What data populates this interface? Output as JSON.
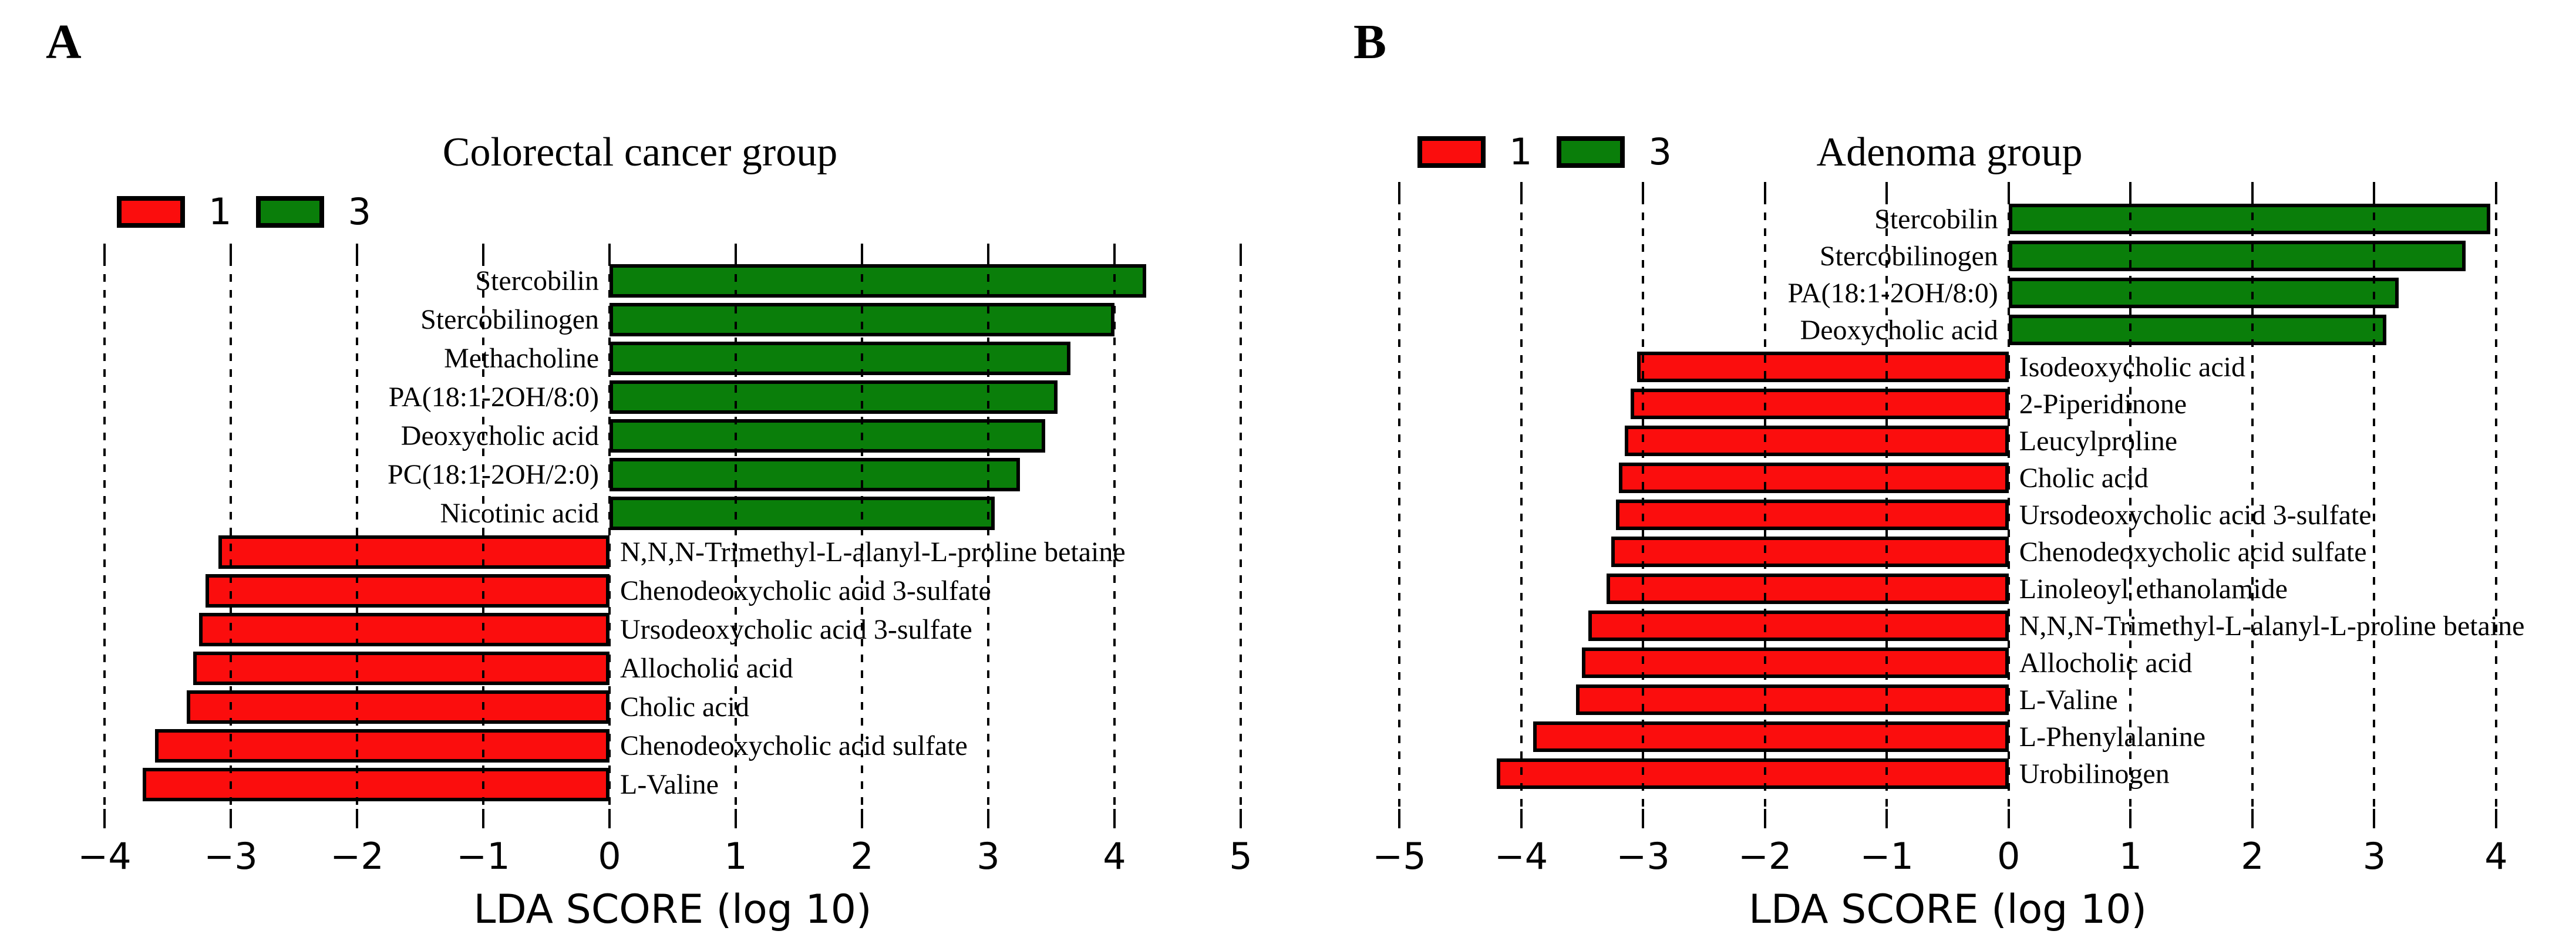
{
  "colors": {
    "series_1_red": "#fb0d0d",
    "series_3_green": "#0a7e0a",
    "bar_border": "#000000",
    "background": "#ffffff",
    "text": "#000000"
  },
  "chart_data": [
    {
      "type": "bar",
      "orientation": "horizontal",
      "panel_letter": "A",
      "title": "Colorectal cancer group",
      "xlabel": "LDA SCORE (log 10)",
      "xlim": [
        -4,
        5
      ],
      "xticks": [
        -4,
        -3,
        -2,
        -1,
        0,
        1,
        2,
        3,
        4,
        5
      ],
      "grid": "dashed-vertical-gridlines",
      "legend_position": "top-left",
      "legend": [
        {
          "label": "1",
          "color": "#fb0d0d"
        },
        {
          "label": "3",
          "color": "#0a7e0a"
        }
      ],
      "bars": [
        {
          "label": "Stercobilin",
          "value": 4.25,
          "series": "3"
        },
        {
          "label": "Stercobilinogen",
          "value": 4.0,
          "series": "3"
        },
        {
          "label": "Methacholine",
          "value": 3.65,
          "series": "3"
        },
        {
          "label": "PA(18:1-2OH/8:0)",
          "value": 3.55,
          "series": "3"
        },
        {
          "label": "Deoxycholic acid",
          "value": 3.45,
          "series": "3"
        },
        {
          "label": "PC(18:1-2OH/2:0)",
          "value": 3.25,
          "series": "3"
        },
        {
          "label": "Nicotinic acid",
          "value": 3.05,
          "series": "3"
        },
        {
          "label": "N,N,N-Trimethyl-L-alanyl-L-proline betaine",
          "value": -3.1,
          "series": "1"
        },
        {
          "label": "Chenodeoxycholic acid 3-sulfate",
          "value": -3.2,
          "series": "1"
        },
        {
          "label": "Ursodeoxycholic acid 3-sulfate",
          "value": -3.25,
          "series": "1"
        },
        {
          "label": "Allocholic acid",
          "value": -3.3,
          "series": "1"
        },
        {
          "label": "Cholic acid",
          "value": -3.35,
          "series": "1"
        },
        {
          "label": "Chenodeoxycholic acid sulfate",
          "value": -3.6,
          "series": "1"
        },
        {
          "label": "L-Valine",
          "value": -3.7,
          "series": "1"
        }
      ]
    },
    {
      "type": "bar",
      "orientation": "horizontal",
      "panel_letter": "B",
      "title": "Adenoma group",
      "xlabel": "LDA SCORE (log 10)",
      "xlim": [
        -5,
        4
      ],
      "xticks": [
        -5,
        -4,
        -3,
        -2,
        -1,
        0,
        1,
        2,
        3,
        4
      ],
      "grid": "dashed-vertical-gridlines",
      "legend_position": "top-left",
      "legend": [
        {
          "label": "1",
          "color": "#fb0d0d"
        },
        {
          "label": "3",
          "color": "#0a7e0a"
        }
      ],
      "bars": [
        {
          "label": "Stercobilin",
          "value": 3.95,
          "series": "3"
        },
        {
          "label": "Stercobilinogen",
          "value": 3.75,
          "series": "3"
        },
        {
          "label": "PA(18:1-2OH/8:0)",
          "value": 3.2,
          "series": "3"
        },
        {
          "label": "Deoxycholic acid",
          "value": 3.1,
          "series": "3"
        },
        {
          "label": "Isodeoxycholic acid",
          "value": -3.05,
          "series": "1"
        },
        {
          "label": "2-Piperidinone",
          "value": -3.1,
          "series": "1"
        },
        {
          "label": "Leucylproline",
          "value": -3.15,
          "series": "1"
        },
        {
          "label": "Cholic acid",
          "value": -3.2,
          "series": "1"
        },
        {
          "label": "Ursodeoxycholic acid 3-sulfate",
          "value": -3.22,
          "series": "1"
        },
        {
          "label": "Chenodeoxycholic acid sulfate",
          "value": -3.26,
          "series": "1"
        },
        {
          "label": "Linoleoyl ethanolamide",
          "value": -3.3,
          "series": "1"
        },
        {
          "label": "N,N,N-Trimethyl-L-alanyl-L-proline betaine",
          "value": -3.45,
          "series": "1"
        },
        {
          "label": "Allocholic acid",
          "value": -3.5,
          "series": "1"
        },
        {
          "label": "L-Valine",
          "value": -3.55,
          "series": "1"
        },
        {
          "label": "L-Phenylalanine",
          "value": -3.9,
          "series": "1"
        },
        {
          "label": "Urobilinogen",
          "value": -4.2,
          "series": "1"
        }
      ]
    }
  ]
}
